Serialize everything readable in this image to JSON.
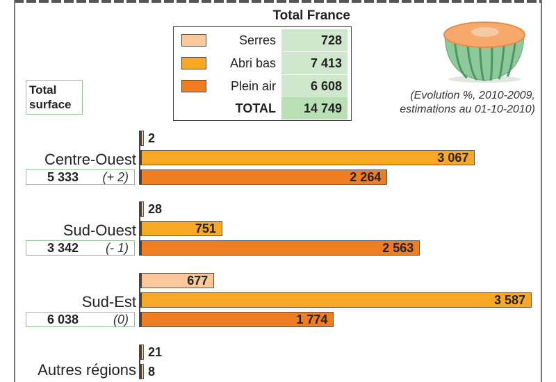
{
  "legend": {
    "title": "Total France",
    "rows": [
      {
        "label": "Serres",
        "value": "728",
        "color": "#fbc89a"
      },
      {
        "label": "Abri bas",
        "value": "7 413",
        "color": "#f9a825"
      },
      {
        "label": "Plein air",
        "value": "6 608",
        "color": "#ef7d22"
      }
    ],
    "total_label": "TOTAL",
    "total_value": "14 749"
  },
  "total_surface_label": "Total surface",
  "note_line1": "(Evolution %, 2010-2009,",
  "note_line2": "estimations au 01-10-2010)",
  "colors": {
    "serres": "#fbc89a",
    "abri_bas": "#f9a825",
    "plein_air": "#ef7d22",
    "green_box": "#8fc28c",
    "green_fill": "#cfe8cd"
  },
  "icons": [
    "melon-icon"
  ],
  "chart_data": {
    "type": "bar",
    "orientation": "horizontal",
    "series_names": [
      "Serres",
      "Abri bas",
      "Plein air"
    ],
    "regions": [
      {
        "name": "Centre-Ouest",
        "total": "5 333",
        "evolution": "(+ 2)",
        "values": [
          2,
          3067,
          2264
        ],
        "labels": [
          "2",
          "3 067",
          "2 264"
        ]
      },
      {
        "name": "Sud-Ouest",
        "total": "3 342",
        "evolution": "(- 1)",
        "values": [
          28,
          751,
          2563
        ],
        "labels": [
          "28",
          "751",
          "2 563"
        ]
      },
      {
        "name": "Sud-Est",
        "total": "6 038",
        "evolution": "(0)",
        "values": [
          677,
          3587,
          1774
        ],
        "labels": [
          "677",
          "3 587",
          "1 774"
        ]
      },
      {
        "name": "Autres régions",
        "total": null,
        "evolution": null,
        "values": [
          21,
          8
        ],
        "labels": [
          "21",
          "8"
        ]
      }
    ]
  }
}
